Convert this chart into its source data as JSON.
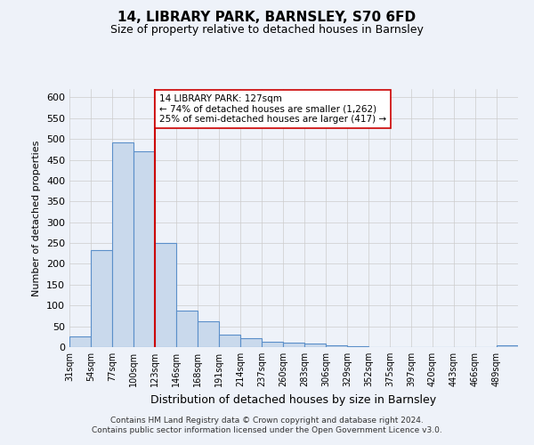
{
  "title": "14, LIBRARY PARK, BARNSLEY, S70 6FD",
  "subtitle": "Size of property relative to detached houses in Barnsley",
  "xlabel": "Distribution of detached houses by size in Barnsley",
  "ylabel": "Number of detached properties",
  "bin_labels": [
    "31sqm",
    "54sqm",
    "77sqm",
    "100sqm",
    "123sqm",
    "146sqm",
    "168sqm",
    "191sqm",
    "214sqm",
    "237sqm",
    "260sqm",
    "283sqm",
    "306sqm",
    "329sqm",
    "352sqm",
    "375sqm",
    "397sqm",
    "420sqm",
    "443sqm",
    "466sqm",
    "489sqm"
  ],
  "bar_values": [
    25,
    233,
    492,
    470,
    250,
    88,
    63,
    31,
    22,
    13,
    10,
    8,
    4,
    2,
    1,
    1,
    1,
    1,
    1,
    0,
    5
  ],
  "bar_color": "#c9d9ec",
  "bar_edgecolor": "#5b8fc9",
  "property_line_x": 4,
  "property_line_color": "#cc0000",
  "annotation_title": "14 LIBRARY PARK: 127sqm",
  "annotation_line1": "← 74% of detached houses are smaller (1,262)",
  "annotation_line2": "25% of semi-detached houses are larger (417) →",
  "annotation_box_color": "#ffffff",
  "annotation_box_edgecolor": "#cc0000",
  "ylim": [
    0,
    620
  ],
  "yticks": [
    0,
    50,
    100,
    150,
    200,
    250,
    300,
    350,
    400,
    450,
    500,
    550,
    600
  ],
  "footer_line1": "Contains HM Land Registry data © Crown copyright and database right 2024.",
  "footer_line2": "Contains public sector information licensed under the Open Government Licence v3.0.",
  "background_color": "#eef2f9",
  "grid_color": "#cccccc"
}
